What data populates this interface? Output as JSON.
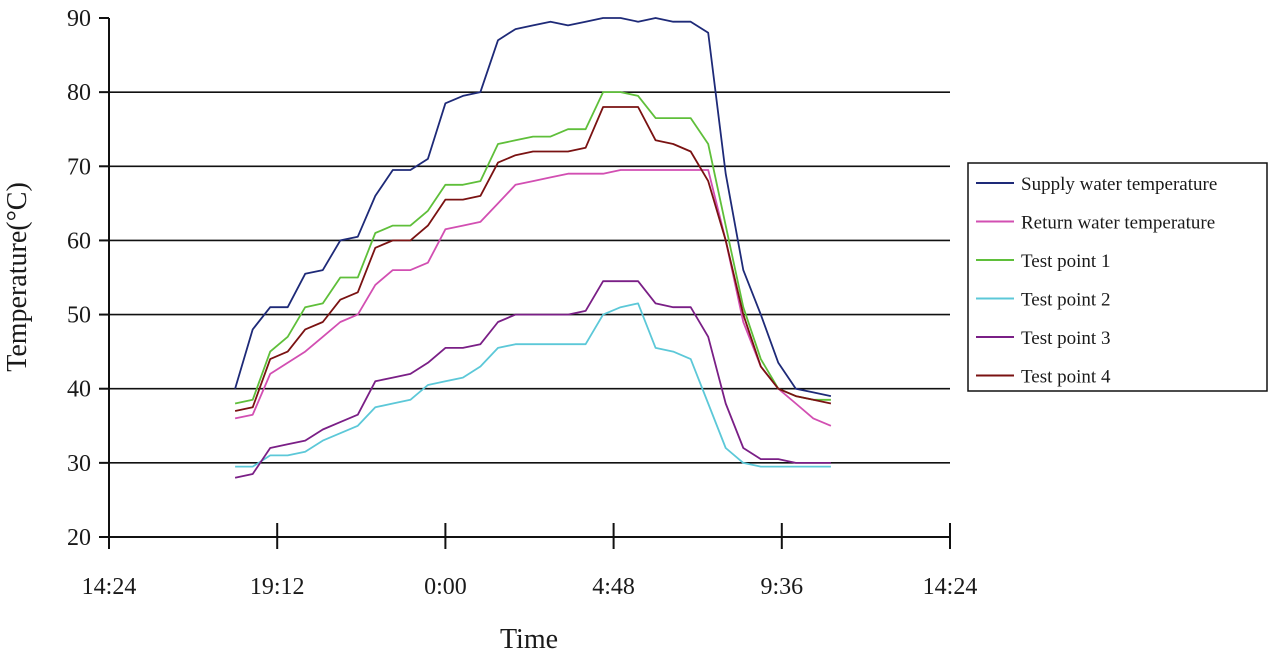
{
  "chart_data": {
    "type": "line",
    "xlabel": "Time",
    "ylabel": "Temperature(°C)",
    "y_ticks": [
      "20",
      "30",
      "40",
      "50",
      "60",
      "70",
      "80",
      "90"
    ],
    "ylim": [
      20,
      90
    ],
    "x_ticks": [
      "14:24",
      "19:12",
      "0:00",
      "4:48",
      "9:36",
      "14:24"
    ],
    "xlim_hours": [
      14.4,
      38.4
    ],
    "grid": "horizontal",
    "legend_position": "right",
    "x": [
      18.0,
      18.5,
      19.0,
      19.5,
      20.0,
      20.5,
      21.0,
      21.5,
      22.0,
      22.5,
      23.0,
      23.5,
      24.0,
      24.5,
      25.0,
      25.5,
      26.0,
      26.5,
      27.0,
      27.5,
      28.0,
      28.5,
      29.0,
      29.5,
      30.0,
      30.5,
      31.0,
      31.5,
      32.0,
      32.5,
      33.0,
      33.5,
      34.0,
      34.5,
      35.0
    ],
    "series": [
      {
        "name": "Supply water temperature",
        "color": "#1e2a78",
        "values": [
          40,
          48,
          51,
          51,
          55.5,
          56,
          60,
          60.5,
          66,
          69.5,
          69.5,
          71,
          78.5,
          79.5,
          80,
          87,
          88.5,
          89,
          89.5,
          89,
          89.5,
          90,
          90,
          89.5,
          90,
          89.5,
          89.5,
          88,
          69,
          56,
          50,
          43.5,
          40,
          39.5,
          39
        ]
      },
      {
        "name": "Return water temperature",
        "color": "#d24fb2",
        "values": [
          36,
          36.5,
          42,
          43.5,
          45,
          47,
          49,
          50,
          54,
          56,
          56,
          57,
          61.5,
          62,
          62.5,
          65,
          67.5,
          68,
          68.5,
          69,
          69,
          69,
          69.5,
          69.5,
          69.5,
          69.5,
          69.5,
          69.5,
          60,
          49,
          43,
          40,
          38,
          36,
          35
        ]
      },
      {
        "name": "Test point 1",
        "color": "#5fbf3a",
        "values": [
          38,
          38.5,
          45,
          47,
          51,
          51.5,
          55,
          55,
          61,
          62,
          62,
          64,
          67.5,
          67.5,
          68,
          73,
          73.5,
          74,
          74,
          75,
          75,
          80,
          80,
          79.5,
          76.5,
          76.5,
          76.5,
          73,
          62,
          51,
          44,
          40,
          39,
          38.5,
          38.5
        ]
      },
      {
        "name": "Test point 2",
        "color": "#5cc8d8",
        "values": [
          29.5,
          29.5,
          31,
          31,
          31.5,
          33,
          34,
          35,
          37.5,
          38,
          38.5,
          40.5,
          41,
          41.5,
          43,
          45.5,
          46,
          46,
          46,
          46,
          46,
          50,
          51,
          51.5,
          45.5,
          45,
          44,
          38,
          32,
          30,
          29.5,
          29.5,
          29.5,
          29.5,
          29.5
        ]
      },
      {
        "name": "Test point 3",
        "color": "#7a1f86",
        "values": [
          28,
          28.5,
          32,
          32.5,
          33,
          34.5,
          35.5,
          36.5,
          41,
          41.5,
          42,
          43.5,
          45.5,
          45.5,
          46,
          49,
          50,
          50,
          50,
          50,
          50.5,
          54.5,
          54.5,
          54.5,
          51.5,
          51,
          51,
          47,
          38,
          32,
          30.5,
          30.5,
          30,
          30,
          30
        ]
      },
      {
        "name": "Test point 4",
        "color": "#7a1212",
        "values": [
          37,
          37.5,
          44,
          45,
          48,
          49,
          52,
          53,
          59,
          60,
          60,
          62,
          65.5,
          65.5,
          66,
          70.5,
          71.5,
          72,
          72,
          72,
          72.5,
          78,
          78,
          78,
          73.5,
          73,
          72,
          68,
          60,
          50,
          43,
          40,
          39,
          38.5,
          38
        ]
      }
    ]
  }
}
